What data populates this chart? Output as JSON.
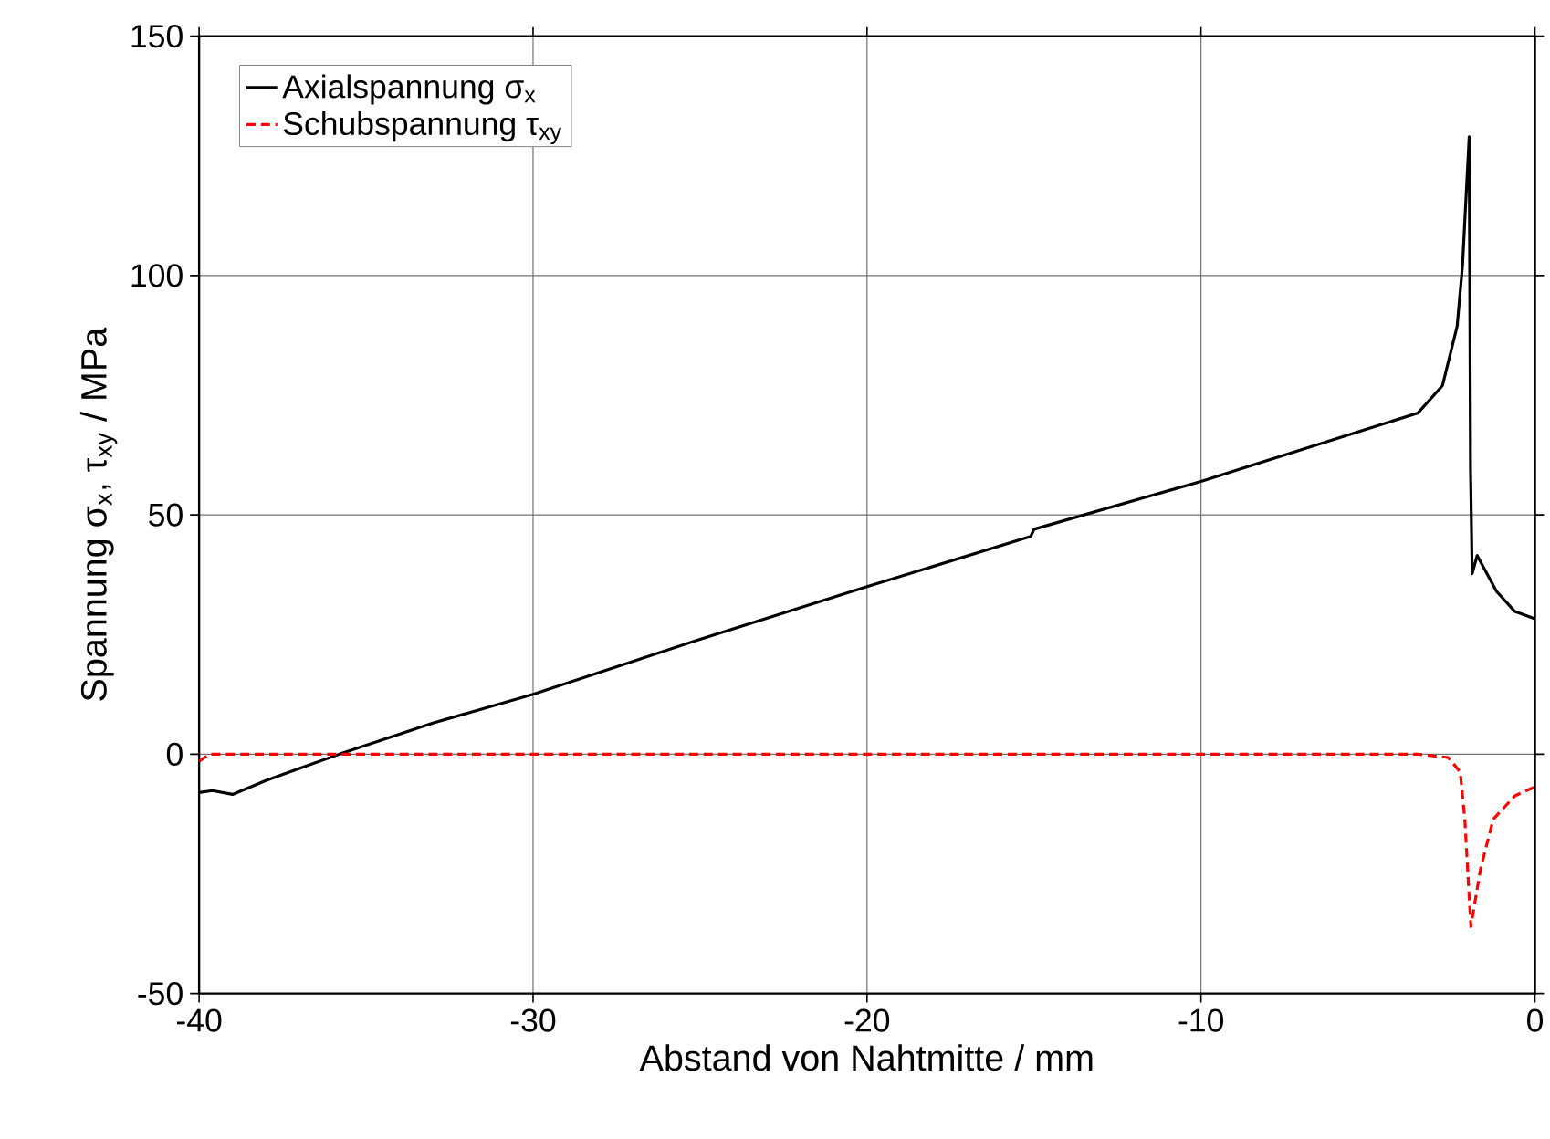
{
  "chart_data": {
    "type": "line",
    "xlabel": "Abstand von Nahtmitte / mm",
    "ylabel": "Spannung σ$_{x}$, τ$_{xy}$ / MPa",
    "xlim": [
      -40,
      0
    ],
    "ylim": [
      -50,
      150
    ],
    "xticks": [
      -40,
      -30,
      -20,
      -10,
      0
    ],
    "yticks": [
      -50,
      0,
      50,
      100,
      150
    ],
    "grid": true,
    "legend": "top left",
    "series": [
      {
        "name": "Axialspannung σ$_{x}$",
        "color": "#000000",
        "line_style": "solid",
        "x": [
          -40,
          -39.6,
          -39,
          -38,
          -37,
          -35.8,
          -33,
          -30,
          -25,
          -20,
          -15.1,
          -15,
          -10,
          -5,
          -3.5,
          -2.77,
          -2.33,
          -2.17,
          -1.97,
          -1.93,
          -1.88,
          -1.73,
          -1.15,
          -0.6,
          0
        ],
        "values": [
          -8,
          -7.6,
          -8.4,
          -5.5,
          -3,
          0,
          6.5,
          12.5,
          24,
          35,
          45.5,
          47,
          57,
          68,
          71.3,
          77,
          89.4,
          102,
          129,
          60,
          37.7,
          41.5,
          34,
          29.8,
          28.3
        ]
      },
      {
        "name": "Schubspannung τ$_{xy}$",
        "color": "#ff0000",
        "line_style": "dashed",
        "x": [
          -40,
          -39.7,
          -30,
          -20,
          -10,
          -3.5,
          -2.6,
          -2.24,
          -2.1,
          -1.92,
          -1.63,
          -1.25,
          -0.6,
          0
        ],
        "values": [
          -1.5,
          0,
          0,
          0,
          0,
          0,
          -0.7,
          -3.7,
          -13.6,
          -36,
          -24,
          -13.6,
          -8.7,
          -6.8
        ]
      }
    ]
  }
}
